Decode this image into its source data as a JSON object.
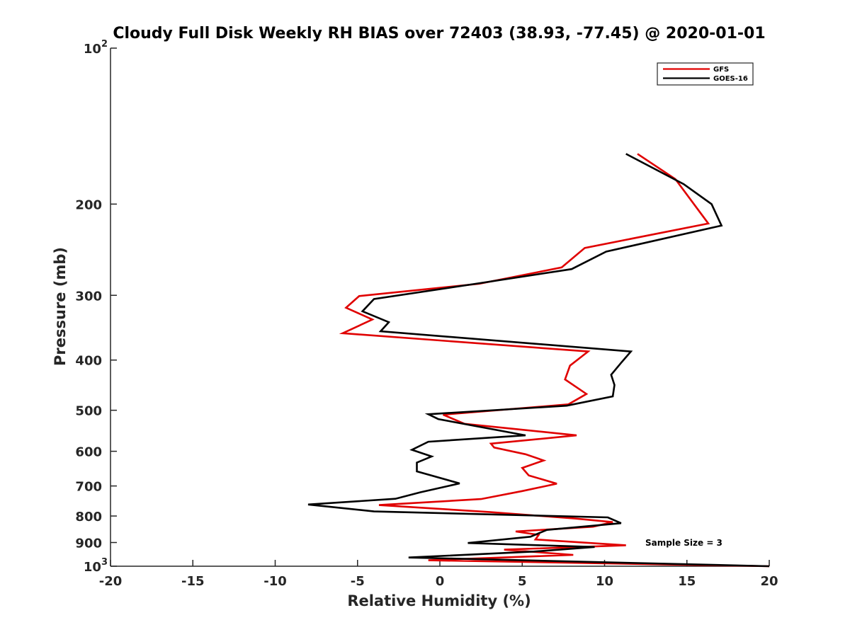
{
  "chart_data": {
    "type": "line",
    "title": "Cloudy Full Disk Weekly RH BIAS over 72403 (38.93, -77.45) @ 2020-01-01",
    "xlabel": "Relative Humidity (%)",
    "ylabel": "Pressure (mb)",
    "xlim": [
      -20,
      20
    ],
    "ylim": [
      100,
      1000
    ],
    "y_scale": "log",
    "y_reversed": true,
    "grid": false,
    "legend_position": "top-right",
    "x_ticks": [
      "-20",
      "-15",
      "-10",
      "-5",
      "0",
      "5",
      "10",
      "15",
      "20"
    ],
    "x_tick_values": [
      -20,
      -15,
      -10,
      -5,
      0,
      5,
      10,
      15,
      20
    ],
    "y_ticks": [
      {
        "value": 100,
        "base": "10",
        "exp": "2"
      },
      {
        "value": 200,
        "base": "200",
        "exp": ""
      },
      {
        "value": 300,
        "base": "300",
        "exp": ""
      },
      {
        "value": 400,
        "base": "400",
        "exp": ""
      },
      {
        "value": 500,
        "base": "500",
        "exp": ""
      },
      {
        "value": 600,
        "base": "600",
        "exp": ""
      },
      {
        "value": 700,
        "base": "700",
        "exp": ""
      },
      {
        "value": 800,
        "base": "800",
        "exp": ""
      },
      {
        "value": 900,
        "base": "900",
        "exp": ""
      },
      {
        "value": 1000,
        "base": "10",
        "exp": "3"
      }
    ],
    "annotation": "Sample Size = 3",
    "series": [
      {
        "name": "GFS",
        "color": "#e00000",
        "points": [
          [
            12.0,
            160
          ],
          [
            14.3,
            179
          ],
          [
            16.3,
            218
          ],
          [
            8.8,
            243
          ],
          [
            7.4,
            265
          ],
          [
            2.4,
            285
          ],
          [
            -4.9,
            301
          ],
          [
            -5.7,
            317
          ],
          [
            -4.1,
            334
          ],
          [
            -5.9,
            355
          ],
          [
            9.0,
            385
          ],
          [
            7.9,
            410
          ],
          [
            7.6,
            436
          ],
          [
            8.9,
            465
          ],
          [
            7.8,
            487
          ],
          [
            0.2,
            510
          ],
          [
            1.5,
            531
          ],
          [
            8.3,
            559
          ],
          [
            3.1,
            580
          ],
          [
            3.3,
            590
          ],
          [
            5.2,
            608
          ],
          [
            6.3,
            625
          ],
          [
            5.0,
            646
          ],
          [
            5.4,
            668
          ],
          [
            7.1,
            693
          ],
          [
            5.0,
            716
          ],
          [
            2.5,
            742
          ],
          [
            -3.7,
            762
          ],
          [
            3.0,
            786
          ],
          [
            8.2,
            809
          ],
          [
            10.5,
            822
          ],
          [
            9.3,
            839
          ],
          [
            4.6,
            857
          ],
          [
            6.0,
            870
          ],
          [
            5.8,
            888
          ],
          [
            11.3,
            911
          ],
          [
            3.9,
            929
          ],
          [
            8.1,
            951
          ],
          [
            -0.7,
            974
          ],
          [
            20.0,
            1000
          ]
        ]
      },
      {
        "name": "GOES-16",
        "color": "#000000",
        "points": [
          [
            11.3,
            160
          ],
          [
            14.8,
            183
          ],
          [
            16.5,
            200
          ],
          [
            17.1,
            220
          ],
          [
            10.1,
            247
          ],
          [
            8.0,
            267
          ],
          [
            2.2,
            285
          ],
          [
            -4.0,
            305
          ],
          [
            -4.7,
            322
          ],
          [
            -3.1,
            338
          ],
          [
            -3.6,
            352
          ],
          [
            11.6,
            385
          ],
          [
            11.0,
            405
          ],
          [
            10.4,
            427
          ],
          [
            10.6,
            447
          ],
          [
            10.5,
            470
          ],
          [
            7.7,
            490
          ],
          [
            -0.7,
            509
          ],
          [
            -0.1,
            520
          ],
          [
            5.2,
            559
          ],
          [
            -0.7,
            575
          ],
          [
            -1.7,
            596
          ],
          [
            -0.5,
            614
          ],
          [
            -1.4,
            631
          ],
          [
            -1.4,
            656
          ],
          [
            1.2,
            692
          ],
          [
            -1.2,
            720
          ],
          [
            -2.7,
            741
          ],
          [
            -8.0,
            760
          ],
          [
            -4.0,
            784
          ],
          [
            10.2,
            805
          ],
          [
            11.0,
            826
          ],
          [
            6.5,
            851
          ],
          [
            5.5,
            877
          ],
          [
            1.7,
            902
          ],
          [
            9.4,
            918
          ],
          [
            5.7,
            937
          ],
          [
            -1.9,
            962
          ],
          [
            20.0,
            1000
          ]
        ]
      }
    ]
  }
}
